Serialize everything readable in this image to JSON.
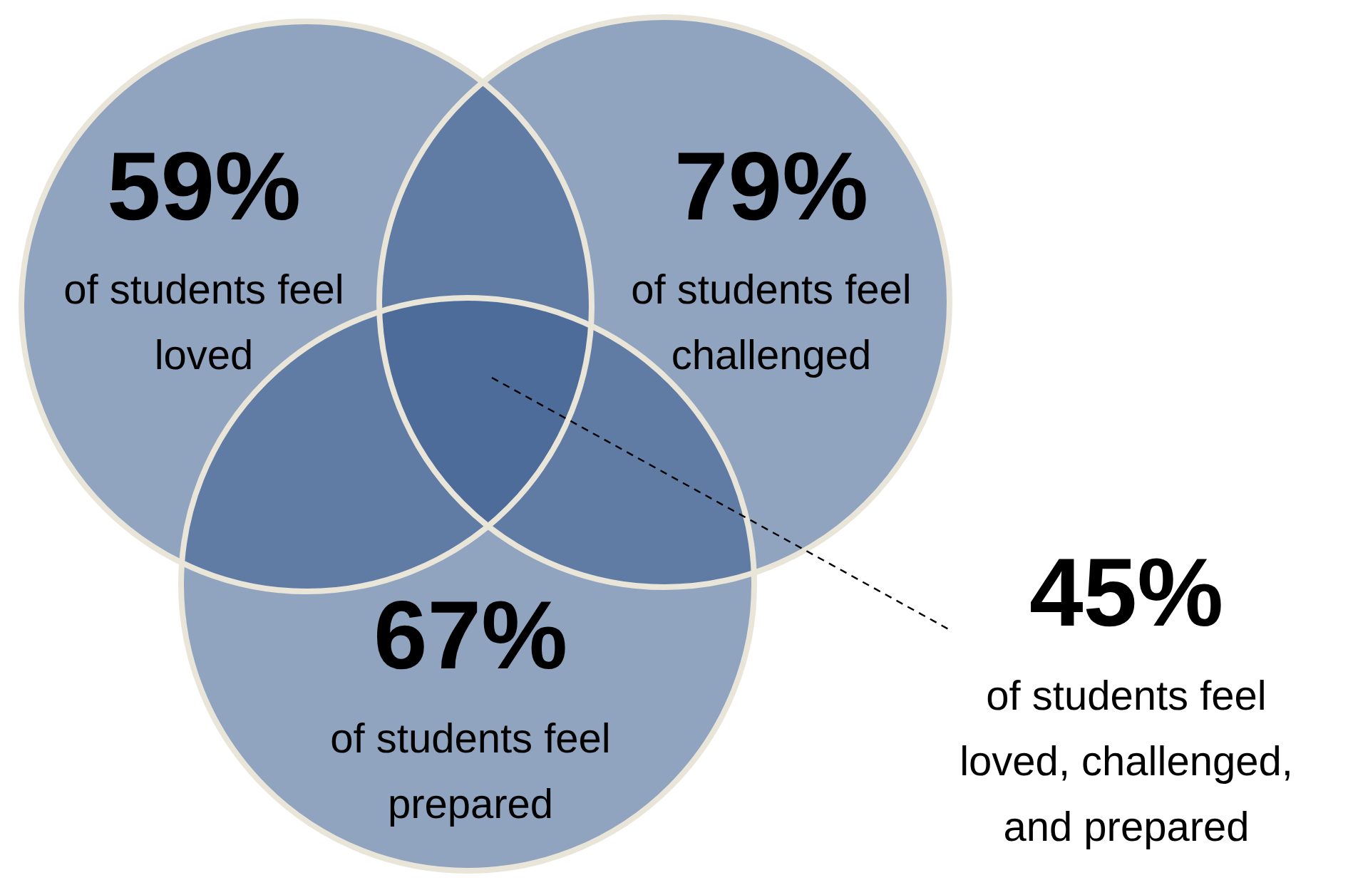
{
  "chart_data": {
    "type": "other",
    "categories": [
      "of students feel loved",
      "of students feel challenged",
      "of students feel prepared",
      "of students feel loved, challenged, and prepared"
    ],
    "values": [
      59,
      79,
      67,
      45
    ],
    "value_labels": [
      "59%",
      "79%",
      "67%",
      "45%"
    ],
    "color": "#3f6190"
  }
}
